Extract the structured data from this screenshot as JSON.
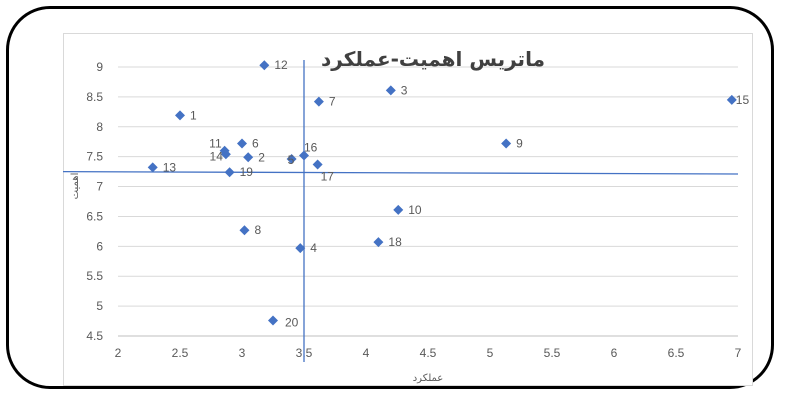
{
  "chart_data": {
    "type": "scatter",
    "title": "ماتریس اهمیت-عملکرد",
    "xlabel": "عملکرد",
    "ylabel": "اهمیت",
    "xlim": [
      2,
      7
    ],
    "ylim": [
      4.5,
      9
    ],
    "xticks": [
      "2",
      "2.5",
      "3",
      "3.5",
      "4",
      "4.5",
      "5",
      "5.5",
      "6",
      "6.5",
      "7"
    ],
    "yticks": [
      "4.5",
      "5",
      "5.5",
      "6",
      "6.5",
      "7",
      "7.5",
      "8",
      "8.5",
      "9"
    ],
    "grid": "horizontal",
    "marker_color": "#4472c4",
    "reference_lines": {
      "vertical_x": 3.5,
      "horizontal_y_left": 7.25,
      "horizontal_y_right": 7.21
    },
    "points": [
      {
        "label": "1",
        "x": 2.5,
        "y": 8.19
      },
      {
        "label": "2",
        "x": 3.05,
        "y": 7.49
      },
      {
        "label": "3",
        "x": 4.2,
        "y": 8.61
      },
      {
        "label": "4",
        "x": 3.47,
        "y": 5.97
      },
      {
        "label": "5",
        "x": 3.4,
        "y": 7.46
      },
      {
        "label": "6",
        "x": 3.0,
        "y": 7.72
      },
      {
        "label": "7",
        "x": 3.62,
        "y": 8.42
      },
      {
        "label": "8",
        "x": 3.02,
        "y": 6.27
      },
      {
        "label": "9",
        "x": 5.13,
        "y": 7.72
      },
      {
        "label": "10",
        "x": 4.26,
        "y": 6.61
      },
      {
        "label": "11",
        "x": 2.86,
        "y": 7.6
      },
      {
        "label": "12",
        "x": 3.18,
        "y": 9.03
      },
      {
        "label": "13",
        "x": 2.28,
        "y": 7.32
      },
      {
        "label": "14",
        "x": 2.87,
        "y": 7.54
      },
      {
        "label": "15",
        "x": 6.95,
        "y": 8.45
      },
      {
        "label": "16",
        "x": 3.5,
        "y": 7.52
      },
      {
        "label": "17",
        "x": 3.61,
        "y": 7.37
      },
      {
        "label": "18",
        "x": 4.1,
        "y": 6.07
      },
      {
        "label": "19",
        "x": 2.9,
        "y": 7.24
      },
      {
        "label": "20",
        "x": 3.25,
        "y": 4.76
      }
    ]
  }
}
